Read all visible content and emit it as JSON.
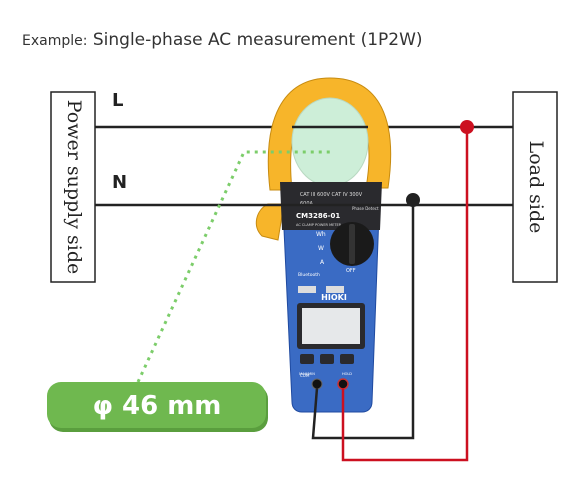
{
  "title": {
    "prefix": "Example:",
    "text": "Single-phase AC measurement (1P2W)"
  },
  "left_box": {
    "label": "Power supply side"
  },
  "right_box": {
    "label": "Load side"
  },
  "lines": {
    "L": "L",
    "N": "N"
  },
  "badge": {
    "text": "φ 46 mm"
  },
  "meter": {
    "model": "CM3286-01",
    "subtitle": "AC CLAMP POWER METER",
    "brand": "HIOKI",
    "dial_labels": [
      "Wh",
      "W",
      "A",
      "OFF"
    ],
    "bluetooth": "Bluetooth",
    "cat_text": "CAT III 600V  CAT IV 300V",
    "max_text": "600A",
    "phase_text": "Phase Detect",
    "btn_labels": [
      "MAX/MIN",
      "HOLD"
    ],
    "com_label": "COM"
  },
  "colors": {
    "wire_black": "#222222",
    "wire_red": "#cc1020",
    "jaw": "#f7b52a",
    "jaw_inner": "#cdeed8",
    "meter_body": "#3a6bc4",
    "dotted": "#7ccd6a",
    "badge": "#6fb84f"
  }
}
